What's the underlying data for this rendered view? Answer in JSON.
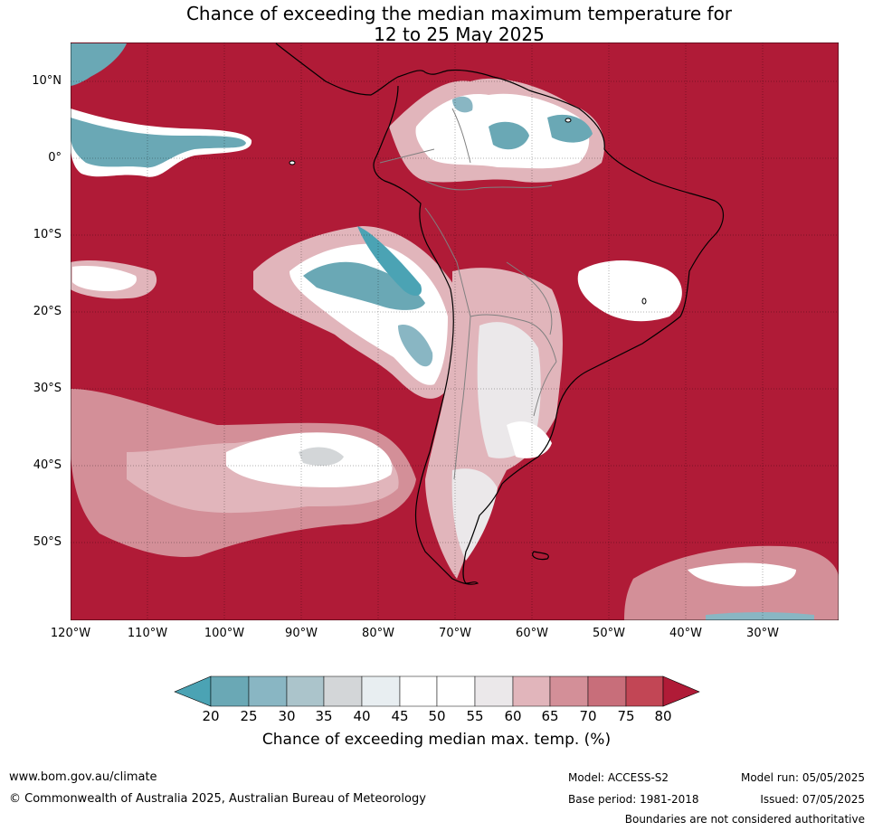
{
  "title": {
    "line1": "Chance of exceeding the median maximum temperature for",
    "line2": "12 to 25 May 2025"
  },
  "map": {
    "lat_labels": [
      "10°N",
      "0°",
      "10°S",
      "20°S",
      "30°S",
      "40°S",
      "50°S"
    ],
    "lon_labels": [
      "120°W",
      "110°W",
      "100°W",
      "90°W",
      "80°W",
      "70°W",
      "60°W",
      "50°W",
      "40°W",
      "30°W"
    ],
    "colors": {
      "above80": "#b01b37",
      "c75_80": "#c24655",
      "c70_75": "#c86e7a",
      "c65_70": "#d38f98",
      "c60_65": "#e1b5bb",
      "c55_60": "#ebe8ea",
      "c45_55": "#ffffff",
      "c40_45": "#e8eef1",
      "c35_40": "#d3d6d8",
      "c30_35": "#abc4cb",
      "c25_30": "#89b6c3",
      "c20_25": "#6aa8b5",
      "below20": "#4ba3b4",
      "land_outline": "#000000",
      "border": "#808080"
    }
  },
  "colorbar": {
    "ticks": [
      "20",
      "25",
      "30",
      "35",
      "40",
      "45",
      "50",
      "55",
      "60",
      "65",
      "70",
      "75",
      "80"
    ],
    "label": "Chance of exceeding median max. temp. (%)"
  },
  "footer": {
    "website": "www.bom.gov.au/climate",
    "copyright": "© Commonwealth of Australia 2025, Australian Bureau of Meteorology",
    "model": "Model: ACCESS-S2",
    "base_period": "Base period: 1981-2018",
    "model_run": "Model run: 05/05/2025",
    "issued": "Issued: 07/05/2025",
    "disclaimer": "Boundaries are not considered authoritative"
  }
}
